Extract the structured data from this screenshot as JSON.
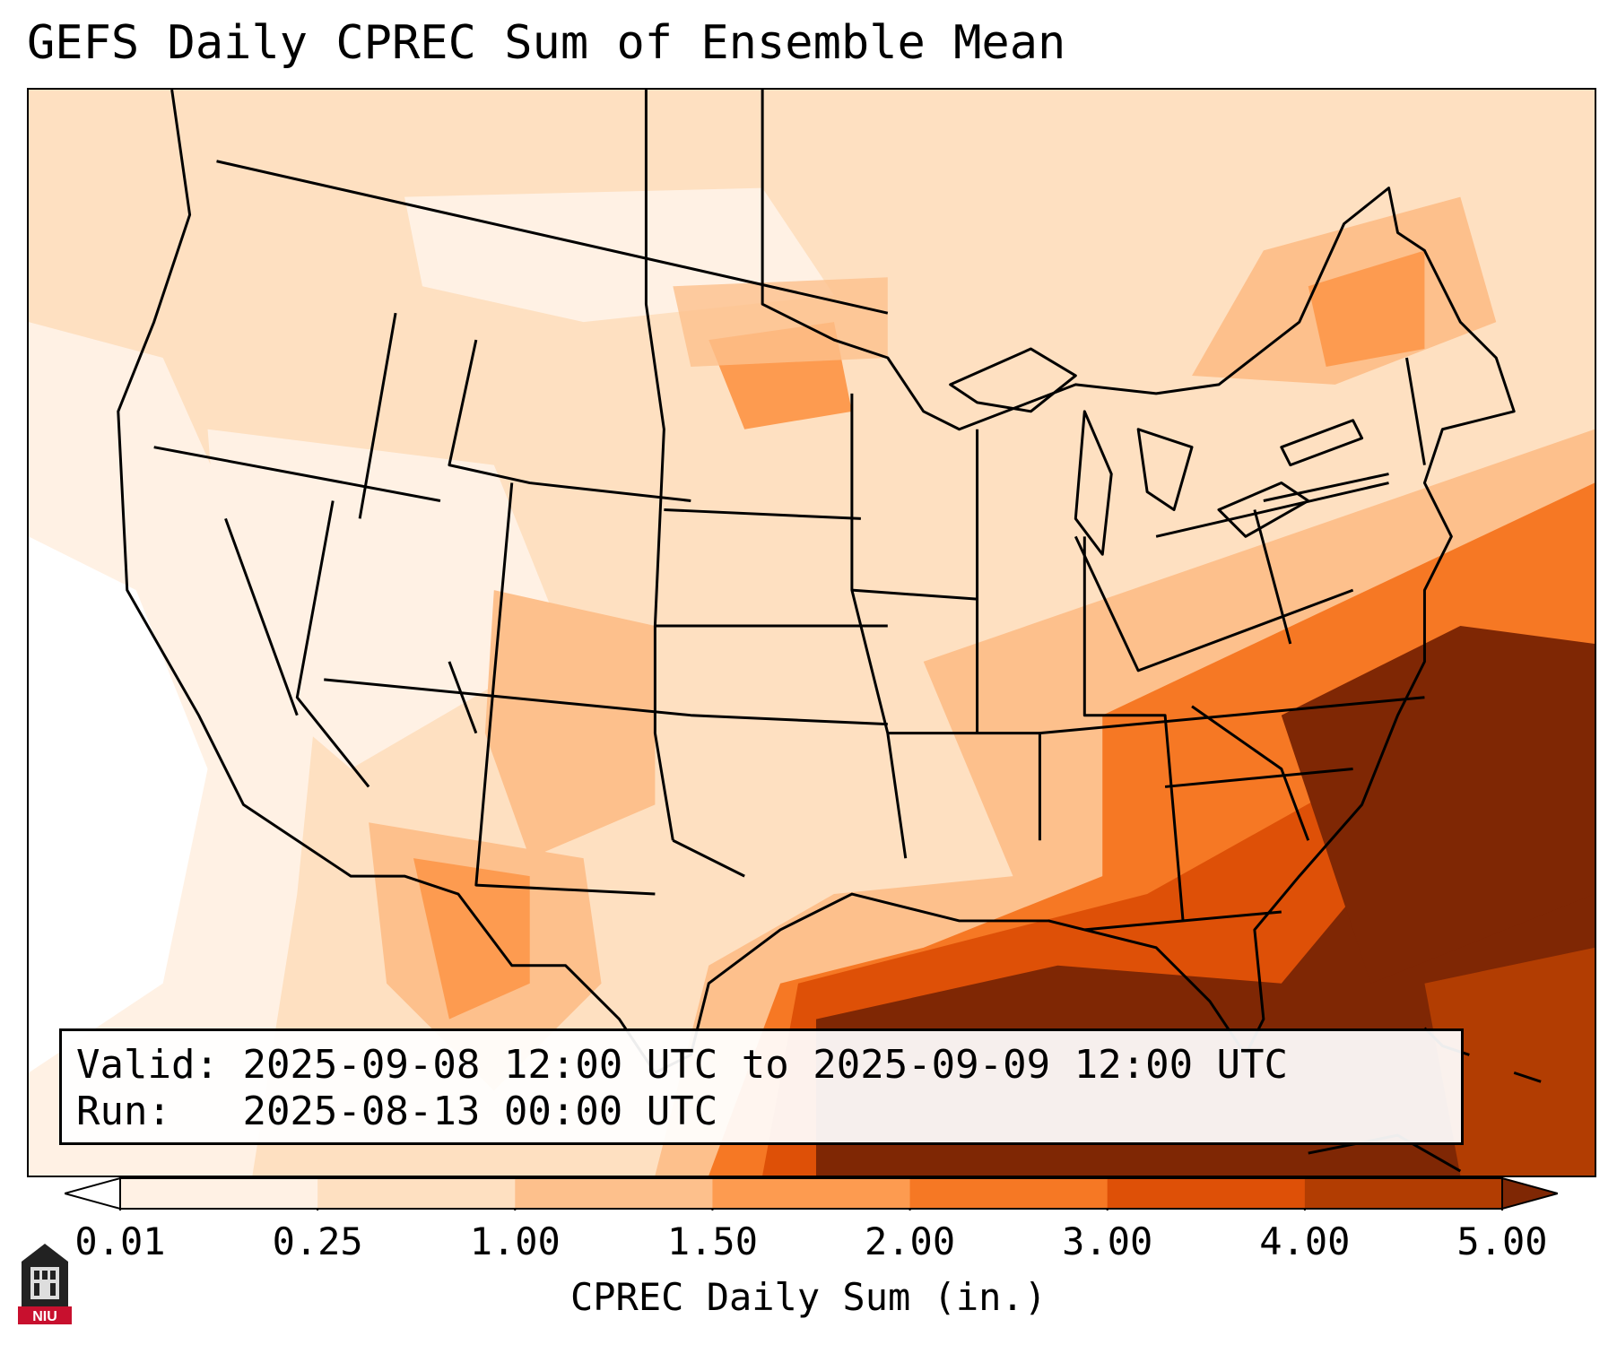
{
  "title": "GEFS Daily CPREC Sum of Ensemble Mean",
  "info": {
    "valid_label": "Valid:",
    "valid_value": "2025-09-08 12:00 UTC to 2025-09-09 12:00 UTC",
    "run_label": "Run:",
    "run_value": "2025-08-13 00:00 UTC"
  },
  "colorbar": {
    "label": "CPREC Daily Sum (in.)",
    "ticks": [
      "0.01",
      "0.25",
      "1.00",
      "1.50",
      "2.00",
      "3.00",
      "4.00",
      "5.00"
    ],
    "bins": [
      {
        "from": "0.01",
        "to": "0.25",
        "color": "#fff1e4"
      },
      {
        "from": "0.25",
        "to": "1.00",
        "color": "#fee0c1"
      },
      {
        "from": "1.00",
        "to": "1.50",
        "color": "#fdc08c"
      },
      {
        "from": "1.50",
        "to": "2.00",
        "color": "#fd9b50"
      },
      {
        "from": "2.00",
        "to": "3.00",
        "color": "#f67824"
      },
      {
        "from": "3.00",
        "to": "4.00",
        "color": "#de5007"
      },
      {
        "from": "4.00",
        "to": "5.00",
        "color": "#b23d02"
      }
    ],
    "under_color": "#ffffff",
    "over_color": "#7f2704"
  },
  "logo": {
    "text": "NIU",
    "color": "#c8102e"
  }
}
